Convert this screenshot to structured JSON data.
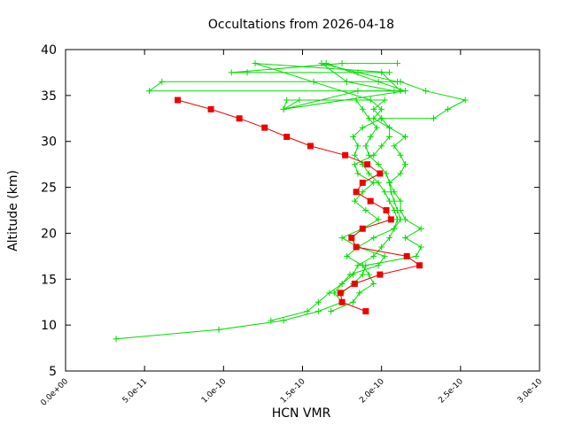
{
  "chart_data": {
    "type": "line",
    "title": "Occultations from 2026-04-18",
    "xlabel": "HCN VMR",
    "ylabel": "Altitude (km)",
    "xlim": [
      0,
      3e-10
    ],
    "ylim": [
      5,
      40
    ],
    "x_ticks": [
      {
        "value": 0,
        "label": "0.0e+00"
      },
      {
        "value": 5e-11,
        "label": "5.0e-11"
      },
      {
        "value": 1e-10,
        "label": "1.0e-10"
      },
      {
        "value": 1.5e-10,
        "label": "1.5e-10"
      },
      {
        "value": 2e-10,
        "label": "2.0e-10"
      },
      {
        "value": 2.5e-10,
        "label": "2.5e-10"
      },
      {
        "value": 3e-10,
        "label": "3.0e-10"
      }
    ],
    "y_ticks": [
      {
        "value": 5,
        "label": "5"
      },
      {
        "value": 10,
        "label": "10"
      },
      {
        "value": 15,
        "label": "15"
      },
      {
        "value": 20,
        "label": "20"
      },
      {
        "value": 25,
        "label": "25"
      },
      {
        "value": 30,
        "label": "30"
      },
      {
        "value": 35,
        "label": "35"
      },
      {
        "value": 40,
        "label": "40"
      }
    ],
    "grid": false,
    "legend": "none",
    "series": [
      {
        "color": "#00dd00",
        "marker": "plus",
        "points": [
          [
            3.2e-11,
            8.5
          ],
          [
            9.7e-11,
            9.5
          ],
          [
            1.38e-10,
            10.5
          ],
          [
            1.6e-10,
            11.5
          ],
          [
            1.75e-10,
            12.5
          ],
          [
            1.7e-10,
            13.5
          ],
          [
            1.75e-10,
            14.5
          ],
          [
            1.82e-10,
            15.5
          ],
          [
            1.85e-10,
            16.5
          ],
          [
            1.95e-10,
            17.5
          ],
          [
            2e-10,
            18.5
          ],
          [
            2.05e-10,
            19.5
          ],
          [
            2.08e-10,
            20.5
          ],
          [
            2.1e-10,
            21.5
          ],
          [
            2.08e-10,
            22.5
          ],
          [
            2.05e-10,
            23.5
          ],
          [
            2.02e-10,
            24.5
          ],
          [
            1.98e-10,
            25.5
          ],
          [
            1.92e-10,
            26.5
          ],
          [
            1.88e-10,
            27.5
          ],
          [
            1.83e-10,
            28.5
          ],
          [
            1.85e-10,
            29.5
          ],
          [
            1.82e-10,
            30.5
          ],
          [
            1.88e-10,
            31.5
          ],
          [
            2e-10,
            32.5
          ],
          [
            2.33e-10,
            32.5
          ],
          [
            2.42e-10,
            33.5
          ],
          [
            2.53e-10,
            34.5
          ],
          [
            2.28e-10,
            35.5
          ],
          [
            2.12e-10,
            36.5
          ],
          [
            1.57e-10,
            36.5
          ],
          [
            6.1e-11,
            36.5
          ],
          [
            5.3e-11,
            35.5
          ],
          [
            2.08e-10,
            35.5
          ],
          [
            1.78e-10,
            36.5
          ],
          [
            1.62e-10,
            38.5
          ],
          [
            1.85e-10,
            37.5
          ],
          [
            2.1e-10,
            36.5
          ]
        ]
      },
      {
        "color": "#00dd00",
        "marker": "plus",
        "points": [
          [
            1.68e-10,
            11.5
          ],
          [
            1.82e-10,
            12.5
          ],
          [
            1.86e-10,
            13.5
          ],
          [
            1.95e-10,
            14.5
          ],
          [
            1.92e-10,
            15.5
          ],
          [
            1.88e-10,
            16.5
          ],
          [
            1.78e-10,
            17.5
          ],
          [
            1.85e-10,
            18.5
          ],
          [
            1.95e-10,
            19.5
          ],
          [
            2.08e-10,
            20.5
          ],
          [
            2.12e-10,
            21.5
          ],
          [
            2.1e-10,
            22.5
          ],
          [
            2.08e-10,
            23.5
          ],
          [
            2.06e-10,
            24.5
          ],
          [
            2.05e-10,
            25.5
          ],
          [
            2.03e-10,
            26.5
          ],
          [
            1.98e-10,
            27.5
          ],
          [
            1.92e-10,
            28.5
          ],
          [
            1.9e-10,
            29.5
          ],
          [
            1.93e-10,
            30.5
          ],
          [
            1.97e-10,
            31.5
          ],
          [
            1.92e-10,
            32.5
          ],
          [
            1.88e-10,
            33.5
          ],
          [
            1.84e-10,
            34.5
          ],
          [
            1.4e-10,
            34.5
          ],
          [
            1.38e-10,
            33.5
          ],
          [
            1.85e-10,
            35.5
          ],
          [
            2.12e-10,
            35.5
          ],
          [
            2e-10,
            37.5
          ],
          [
            1.15e-10,
            37.5
          ],
          [
            1.05e-10,
            37.5
          ],
          [
            1.75e-10,
            38.5
          ],
          [
            2.1e-10,
            38.5
          ]
        ]
      },
      {
        "color": "#00dd00",
        "marker": "plus",
        "points": [
          [
            1.3e-10,
            10.5
          ],
          [
            1.53e-10,
            11.5
          ],
          [
            1.6e-10,
            12.5
          ],
          [
            1.67e-10,
            13.5
          ],
          [
            1.75e-10,
            14.5
          ],
          [
            1.8e-10,
            15.5
          ],
          [
            1.98e-10,
            16.5
          ],
          [
            2.02e-10,
            17.5
          ],
          [
            1.85e-10,
            18.5
          ],
          [
            1.75e-10,
            19.5
          ],
          [
            1.88e-10,
            20.5
          ],
          [
            1.98e-10,
            21.5
          ],
          [
            1.9e-10,
            22.5
          ],
          [
            1.83e-10,
            23.5
          ],
          [
            1.88e-10,
            24.5
          ],
          [
            1.95e-10,
            25.5
          ],
          [
            1.85e-10,
            26.5
          ],
          [
            1.83e-10,
            27.5
          ],
          [
            1.95e-10,
            28.5
          ],
          [
            2e-10,
            29.5
          ],
          [
            2.05e-10,
            30.5
          ],
          [
            2.05e-10,
            31.5
          ],
          [
            2e-10,
            32.5
          ],
          [
            1.95e-10,
            33.5
          ],
          [
            2.02e-10,
            34.5
          ],
          [
            1.48e-10,
            34.5
          ],
          [
            1.38e-10,
            33.5
          ],
          [
            2.15e-10,
            35.5
          ],
          [
            1.98e-10,
            36.5
          ],
          [
            1.65e-10,
            38.5
          ]
        ]
      },
      {
        "color": "#00dd00",
        "marker": "plus",
        "points": [
          [
            1.75e-10,
            13.5
          ],
          [
            1.82e-10,
            14.5
          ],
          [
            1.88e-10,
            15.5
          ],
          [
            1.9e-10,
            16.5
          ],
          [
            2.22e-10,
            17.5
          ],
          [
            2.25e-10,
            18.5
          ],
          [
            2.15e-10,
            19.5
          ],
          [
            2.25e-10,
            20.5
          ],
          [
            2.15e-10,
            21.5
          ],
          [
            2.12e-10,
            22.5
          ],
          [
            2.12e-10,
            23.5
          ],
          [
            2.08e-10,
            24.5
          ],
          [
            2.05e-10,
            25.5
          ],
          [
            2.12e-10,
            26.5
          ],
          [
            2.15e-10,
            27.5
          ],
          [
            2.12e-10,
            28.5
          ],
          [
            2.08e-10,
            29.5
          ],
          [
            2.15e-10,
            30.5
          ],
          [
            2.05e-10,
            31.5
          ],
          [
            1.95e-10,
            32.5
          ],
          [
            2e-10,
            33.5
          ],
          [
            1.93e-10,
            34.5
          ],
          [
            1.2e-10,
            38.5
          ],
          [
            2.05e-10,
            37.5
          ]
        ]
      },
      {
        "color": "#ee0000",
        "marker": "square",
        "points": [
          [
            1.9e-10,
            11.5
          ],
          [
            1.75e-10,
            12.5
          ],
          [
            1.74e-10,
            13.5
          ],
          [
            1.83e-10,
            14.5
          ],
          [
            1.99e-10,
            15.5
          ],
          [
            2.24e-10,
            16.5
          ],
          [
            2.16e-10,
            17.5
          ],
          [
            1.84e-10,
            18.5
          ],
          [
            1.81e-10,
            19.5
          ],
          [
            1.88e-10,
            20.5
          ],
          [
            2.06e-10,
            21.5
          ],
          [
            2.03e-10,
            22.5
          ],
          [
            1.93e-10,
            23.5
          ],
          [
            1.84e-10,
            24.5
          ],
          [
            1.88e-10,
            25.5
          ],
          [
            1.99e-10,
            26.5
          ],
          [
            1.91e-10,
            27.5
          ],
          [
            1.77e-10,
            28.5
          ],
          [
            1.55e-10,
            29.5
          ],
          [
            1.4e-10,
            30.5
          ],
          [
            1.26e-10,
            31.5
          ],
          [
            1.1e-10,
            32.5
          ],
          [
            9.2e-11,
            33.5
          ],
          [
            7.1e-11,
            34.5
          ]
        ]
      }
    ]
  }
}
